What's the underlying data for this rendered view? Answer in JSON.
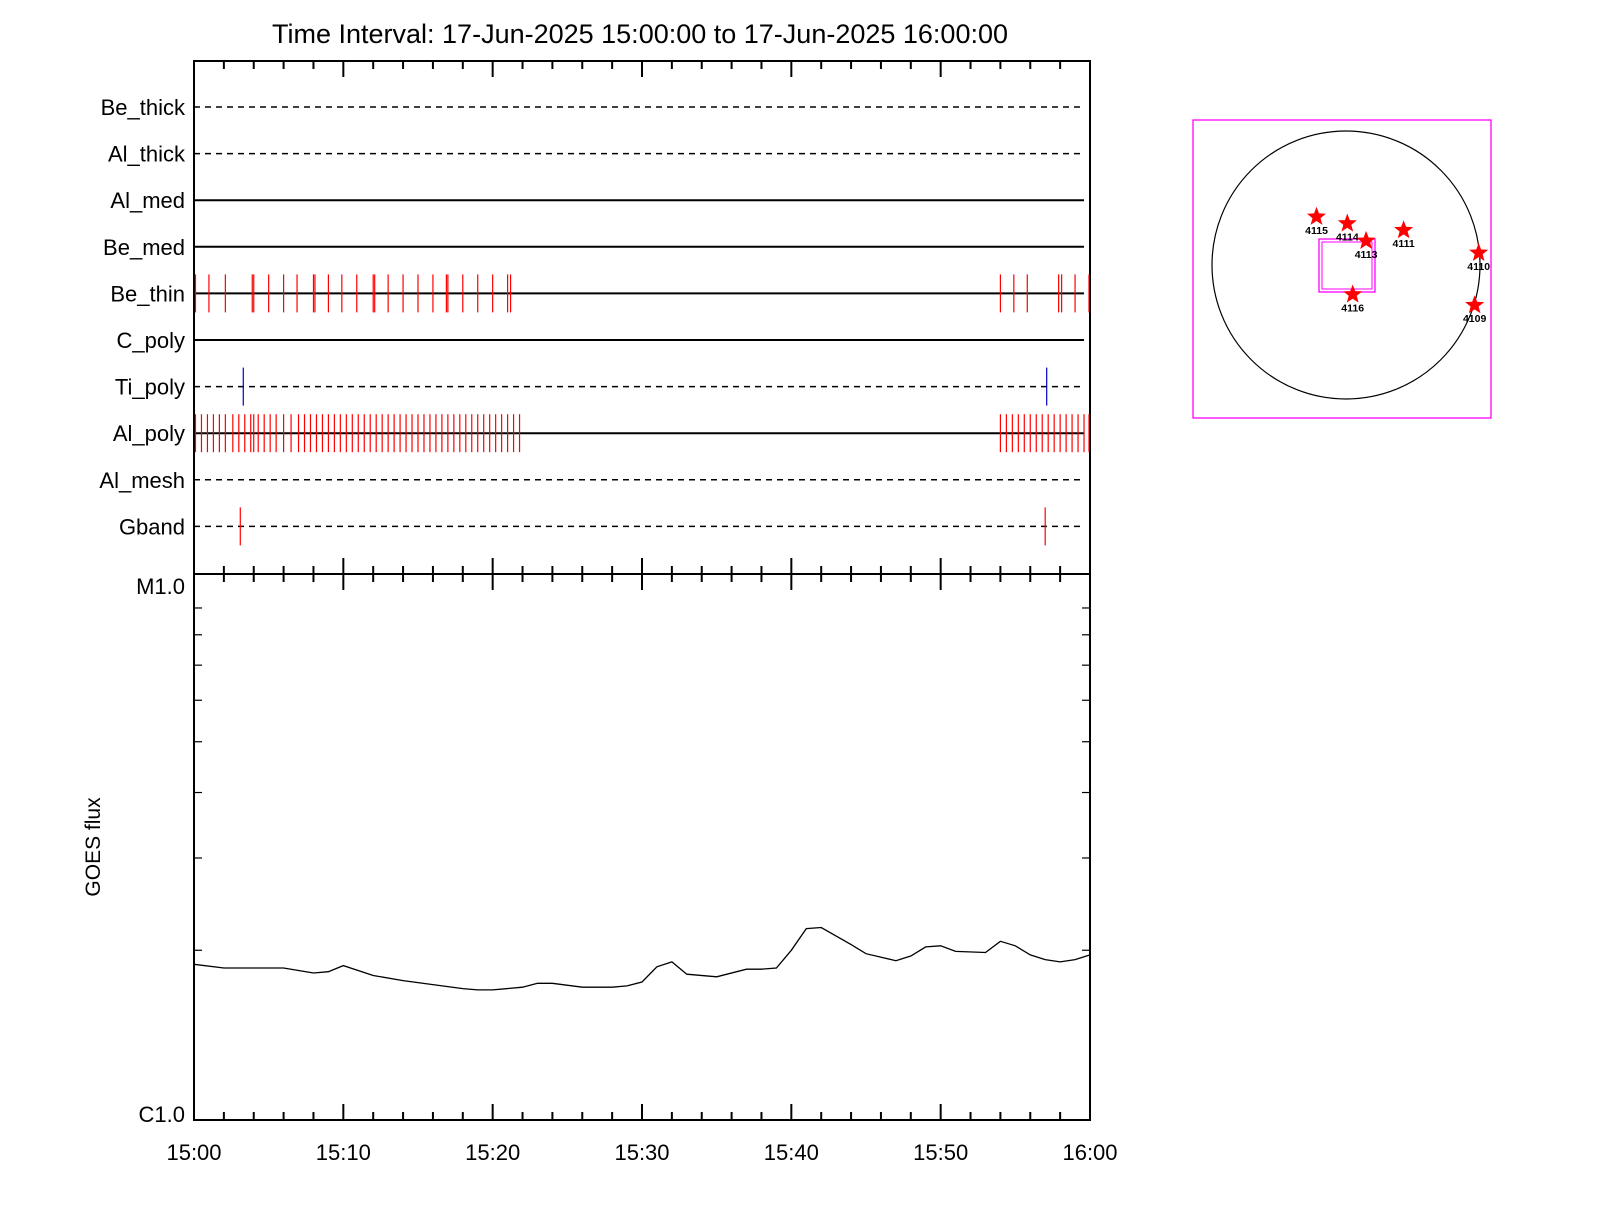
{
  "title": "Time Interval: 17-Jun-2025 15:00:00 to 17-Jun-2025 16:00:00",
  "colors": {
    "axis": "#000000",
    "event_red": "#ff0000",
    "event_blue": "#0000cc",
    "fov_box": "#ff00ff",
    "star": "#ff0000"
  },
  "chart_data": [
    {
      "type": "line",
      "name": "filter-timeline",
      "x_unit": "minutes after 15:00",
      "xlim": [
        0,
        60
      ],
      "rows": [
        {
          "label": "Be_thick",
          "style": "dashed",
          "events": [],
          "event_color": "red"
        },
        {
          "label": "Al_thick",
          "style": "dashed",
          "events": [],
          "event_color": "red"
        },
        {
          "label": "Al_med",
          "style": "solid",
          "events": [],
          "event_color": "red"
        },
        {
          "label": "Be_med",
          "style": "solid",
          "events": [],
          "event_color": "red"
        },
        {
          "label": "Be_thin",
          "style": "solid",
          "event_color": "red",
          "events": [
            0.1,
            1.0,
            2.1,
            3.9,
            4.0,
            5.0,
            6.0,
            6.9,
            8.0,
            8.1,
            9.0,
            9.9,
            10.9,
            12.0,
            12.1,
            13.0,
            14.0,
            15.0,
            16.0,
            16.9,
            17.0,
            18.0,
            19.0,
            20.0,
            21.0,
            21.2,
            54.0,
            54.9,
            55.8,
            57.9,
            58.1,
            59.0,
            60.0
          ]
        },
        {
          "label": "C_poly",
          "style": "solid",
          "events": [],
          "event_color": "red"
        },
        {
          "label": "Ti_poly",
          "style": "dashed",
          "event_color": "blue",
          "events": [
            3.3,
            57.1
          ]
        },
        {
          "label": "Al_poly",
          "style": "solid",
          "event_color": "red",
          "events": [
            0.1,
            0.5,
            0.9,
            1.3,
            1.7,
            2.1,
            2.6,
            3.0,
            3.4,
            3.8,
            4.0,
            4.3,
            4.7,
            5.1,
            5.5,
            6.0,
            6.5,
            7.0,
            7.4,
            7.8,
            8.2,
            8.6,
            9.0,
            9.4,
            9.8,
            10.2,
            10.6,
            11.0,
            11.4,
            11.8,
            12.2,
            12.6,
            13.0,
            13.4,
            13.8,
            14.2,
            14.6,
            15.0,
            15.4,
            15.8,
            16.2,
            16.6,
            17.0,
            17.4,
            17.8,
            18.2,
            18.6,
            19.0,
            19.4,
            19.8,
            20.2,
            20.6,
            21.0,
            21.4,
            21.8,
            54.0,
            54.4,
            54.8,
            55.2,
            55.6,
            56.0,
            56.4,
            56.8,
            57.2,
            57.6,
            58.0,
            58.4,
            58.8,
            59.2,
            59.6,
            60.0
          ]
        },
        {
          "label": "Al_mesh",
          "style": "dashed",
          "events": [],
          "event_color": "red"
        },
        {
          "label": "Gband",
          "style": "dashed",
          "event_color": "red",
          "events": [
            3.1,
            57.0
          ]
        }
      ]
    },
    {
      "type": "line",
      "name": "goes-flux",
      "ylabel": "GOES flux",
      "y_scale": "log",
      "ylim": [
        1e-06,
        1e-05
      ],
      "y_tick_labels": [
        {
          "value": 1e-05,
          "label": "M1.0"
        },
        {
          "value": 1e-06,
          "label": "C1.0"
        }
      ],
      "x_tick_labels": [
        "15:00",
        "15:10",
        "15:20",
        "15:30",
        "15:40",
        "15:50",
        "16:00"
      ],
      "x_tick_values": [
        0,
        10,
        20,
        30,
        40,
        50,
        60
      ],
      "xlim": [
        0,
        60
      ],
      "series": [
        {
          "x": [
            0,
            2,
            4,
            6,
            8,
            9,
            10,
            12,
            14,
            16,
            18,
            19,
            20,
            22,
            23,
            24,
            26,
            28,
            29,
            30,
            31,
            32,
            33,
            35,
            37,
            38,
            39,
            40,
            41,
            42,
            44,
            45,
            47,
            48,
            49,
            50,
            51,
            53,
            54,
            55,
            56,
            57,
            58,
            59,
            60
          ],
          "y": [
            1.88e-06,
            1.85e-06,
            1.85e-06,
            1.85e-06,
            1.81e-06,
            1.82e-06,
            1.87e-06,
            1.79e-06,
            1.75e-06,
            1.72e-06,
            1.69e-06,
            1.68e-06,
            1.68e-06,
            1.7e-06,
            1.73e-06,
            1.73e-06,
            1.7e-06,
            1.7e-06,
            1.71e-06,
            1.74e-06,
            1.86e-06,
            1.9e-06,
            1.8e-06,
            1.78e-06,
            1.84e-06,
            1.84e-06,
            1.85e-06,
            2e-06,
            2.2e-06,
            2.21e-06,
            2.05e-06,
            1.97e-06,
            1.91e-06,
            1.95e-06,
            2.03e-06,
            2.04e-06,
            1.99e-06,
            1.98e-06,
            2.08e-06,
            2.04e-06,
            1.96e-06,
            1.92e-06,
            1.9e-06,
            1.92e-06,
            1.96e-06
          ]
        }
      ]
    },
    {
      "type": "scatter",
      "name": "solar-disk-map",
      "points": [
        {
          "label": "4115",
          "x": -0.22,
          "y": 0.36
        },
        {
          "label": "4114",
          "x": 0.01,
          "y": 0.31
        },
        {
          "label": "4113",
          "x": 0.15,
          "y": 0.18
        },
        {
          "label": "4111",
          "x": 0.43,
          "y": 0.26
        },
        {
          "label": "4110",
          "x": 0.99,
          "y": 0.09
        },
        {
          "label": "4116",
          "x": 0.05,
          "y": -0.22
        },
        {
          "label": "4109",
          "x": 0.96,
          "y": -0.3
        }
      ]
    }
  ]
}
